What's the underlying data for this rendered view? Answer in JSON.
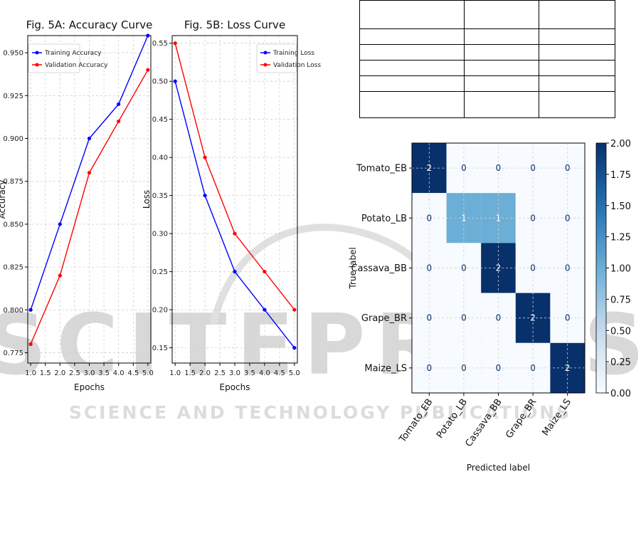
{
  "watermark": {
    "main": "SCITEPRESS",
    "sub": "SCIENCE AND TECHNOLOGY PUBLICATIONS"
  },
  "table": {
    "rows": [
      [
        "",
        "",
        ""
      ],
      [
        "",
        "",
        ""
      ],
      [
        "",
        "",
        ""
      ],
      [
        "",
        "",
        ""
      ],
      [
        "",
        "",
        ""
      ],
      [
        "",
        "",
        ""
      ]
    ]
  },
  "chart_data": [
    {
      "type": "line",
      "title": "Fig. 5A: Accuracy Curve",
      "xlabel": "Epochs",
      "ylabel": "Accuracy",
      "x": [
        1,
        2,
        3,
        4,
        5
      ],
      "xticks": [
        "1.0",
        "1.5",
        "2.0",
        "2.5",
        "3.0",
        "3.5",
        "4.0",
        "4.5",
        "5.0"
      ],
      "yticks": [
        "0.775",
        "0.800",
        "0.825",
        "0.850",
        "0.875",
        "0.900",
        "0.925",
        "0.950"
      ],
      "xlim": [
        0.9,
        5.1
      ],
      "ylim": [
        0.769,
        0.96
      ],
      "grid": true,
      "legend": "top-left",
      "series": [
        {
          "name": "Training Accuracy",
          "color": "#0000ff",
          "values": [
            0.8,
            0.85,
            0.9,
            0.92,
            0.96
          ]
        },
        {
          "name": "Validation Accuracy",
          "color": "#ff0000",
          "values": [
            0.78,
            0.82,
            0.88,
            0.91,
            0.94
          ]
        }
      ]
    },
    {
      "type": "line",
      "title": "Fig. 5B: Loss Curve",
      "xlabel": "Epochs",
      "ylabel": "Loss",
      "x": [
        1,
        2,
        3,
        4,
        5
      ],
      "xticks": [
        "1.0",
        "1.5",
        "2.0",
        "2.5",
        "3.0",
        "3.5",
        "4.0",
        "4.5",
        "5.0"
      ],
      "yticks": [
        "0.15",
        "0.20",
        "0.25",
        "0.30",
        "0.35",
        "0.40",
        "0.45",
        "0.50",
        "0.55"
      ],
      "xlim": [
        0.9,
        5.1
      ],
      "ylim": [
        0.13,
        0.56
      ],
      "grid": true,
      "legend": "top-right",
      "series": [
        {
          "name": "Training Loss",
          "color": "#0000ff",
          "values": [
            0.5,
            0.35,
            0.25,
            0.2,
            0.15
          ]
        },
        {
          "name": "Validation Loss",
          "color": "#ff0000",
          "values": [
            0.55,
            0.4,
            0.3,
            0.25,
            0.2
          ]
        }
      ]
    },
    {
      "type": "heatmap",
      "title": "",
      "xlabel": "Predicted label",
      "ylabel": "True label",
      "rows": [
        "Tomato_EB",
        "Potato_LB",
        "Cassava_BB",
        "Grape_BR",
        "Maize_LS"
      ],
      "columns": [
        "Tomato_EB",
        "Potato_LB",
        "Cassava_BB",
        "Grape_BR",
        "Maize_LS"
      ],
      "values": [
        [
          2,
          0,
          0,
          0,
          0
        ],
        [
          0,
          1,
          1,
          0,
          0
        ],
        [
          0,
          0,
          2,
          0,
          0
        ],
        [
          0,
          0,
          0,
          2,
          0
        ],
        [
          0,
          0,
          0,
          0,
          2
        ]
      ],
      "colormap": "Blues",
      "vmin": 0,
      "vmax": 2,
      "colorbar_ticks": [
        "0.00",
        "0.25",
        "0.50",
        "0.75",
        "1.00",
        "1.25",
        "1.50",
        "1.75",
        "2.00"
      ]
    }
  ]
}
